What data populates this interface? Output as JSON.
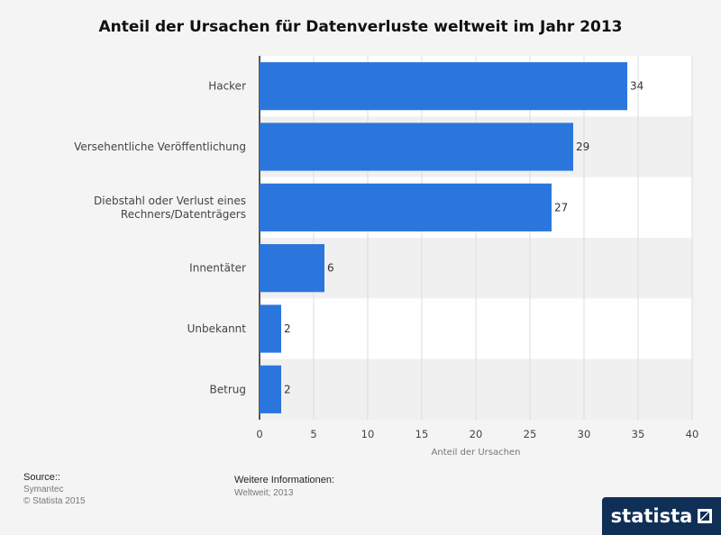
{
  "chart_data": {
    "type": "bar",
    "orientation": "horizontal",
    "title": "Anteil der Ursachen für Datenverluste weltweit im Jahr 2013",
    "categories": [
      [
        "Hacker"
      ],
      [
        "Versehentliche Veröffentlichung"
      ],
      [
        "Diebstahl oder Verlust eines",
        "Rechners/Datenträgers"
      ],
      [
        "Innentäter"
      ],
      [
        "Unbekannt"
      ],
      [
        "Betrug"
      ]
    ],
    "values": [
      34,
      29,
      27,
      6,
      2,
      2
    ],
    "xlabel": "Anteil der Ursachen",
    "ylabel": "",
    "xlim": [
      0,
      40
    ],
    "xticks": [
      0,
      5,
      10,
      15,
      20,
      25,
      30,
      35,
      40
    ],
    "bar_color": "#2a76dd",
    "grid": true
  },
  "footer": {
    "source_label": "Source::",
    "source_name": "Symantec",
    "copyright": "© Statista 2015",
    "info_label": "Weitere Informationen:",
    "info_text": "Weltweit; 2013"
  },
  "logo": {
    "text": "statista"
  }
}
